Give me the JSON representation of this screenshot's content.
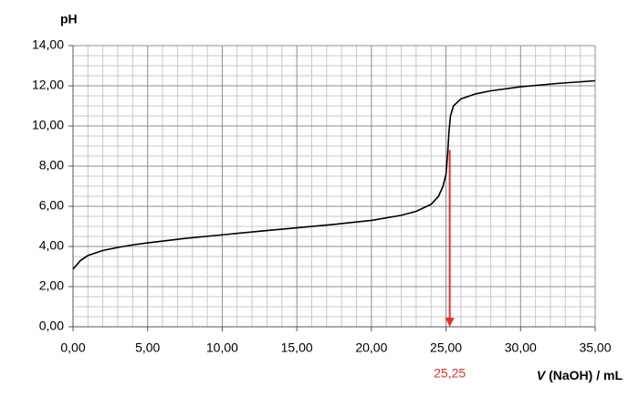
{
  "chart_data": {
    "type": "line",
    "y_label": "pH",
    "x_label": [
      "V",
      " (NaOH) / mL"
    ],
    "x": [
      0,
      0.5,
      1,
      2,
      3,
      4,
      5,
      7.5,
      10,
      12.5,
      15,
      17.5,
      20,
      22,
      23,
      24,
      24.5,
      24.8,
      25.0,
      25.1,
      25.2,
      25.3,
      25.5,
      26,
      27,
      28,
      30,
      32.5,
      35
    ],
    "values": [
      2.87,
      3.3,
      3.55,
      3.8,
      3.95,
      4.08,
      4.18,
      4.4,
      4.58,
      4.76,
      4.93,
      5.1,
      5.3,
      5.55,
      5.75,
      6.1,
      6.5,
      7.0,
      7.6,
      8.5,
      9.7,
      10.5,
      11.0,
      11.35,
      11.6,
      11.75,
      11.95,
      12.12,
      12.25
    ],
    "color": "#000000",
    "xlim": [
      0,
      35
    ],
    "xticks": [
      {
        "value": 0,
        "label": "0,00"
      },
      {
        "value": 5,
        "label": "5,00"
      },
      {
        "value": 10,
        "label": "10,00"
      },
      {
        "value": 15,
        "label": "15,00"
      },
      {
        "value": 20,
        "label": "20,00"
      },
      {
        "value": 25,
        "label": "25,00"
      },
      {
        "value": 30,
        "label": "30,00"
      },
      {
        "value": 35,
        "label": "35,00"
      }
    ],
    "ylim": [
      0,
      14
    ],
    "yticks": [
      {
        "value": 0,
        "label": "0,00"
      },
      {
        "value": 2,
        "label": "2,00"
      },
      {
        "value": 4,
        "label": "4,00"
      },
      {
        "value": 6,
        "label": "6,00"
      },
      {
        "value": 8,
        "label": "8,00"
      },
      {
        "value": 10,
        "label": "10,00"
      },
      {
        "value": 12,
        "label": "12,00"
      },
      {
        "value": 14,
        "label": "14,00"
      }
    ],
    "grid": true,
    "annotation": {
      "label": "25,25",
      "x": 25.25,
      "y_start": 8.8,
      "y_end": 0,
      "color": "#e8302a"
    }
  }
}
